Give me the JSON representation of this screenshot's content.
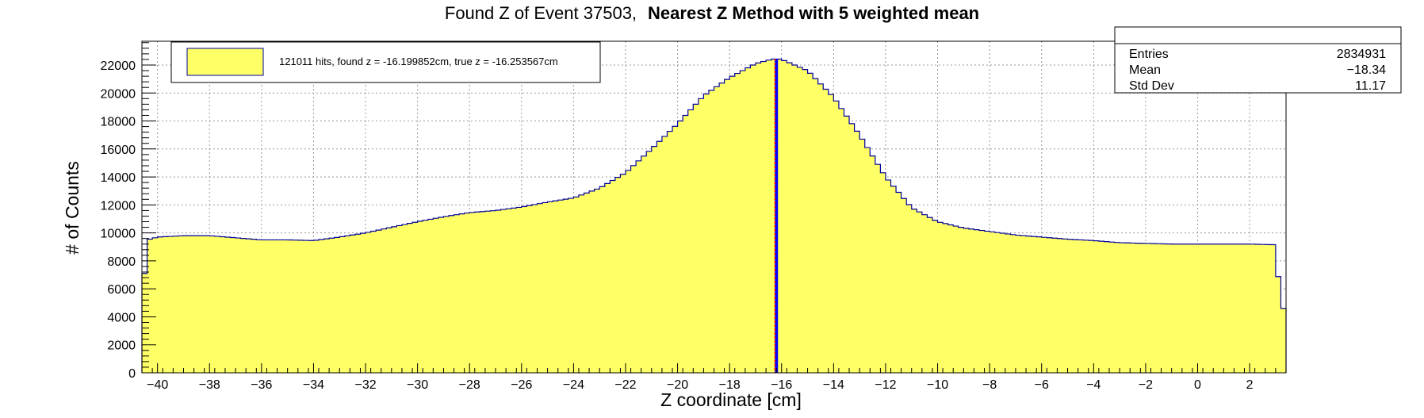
{
  "title": {
    "prefix": "Found Z of Event 37503,",
    "bold": "Nearest Z Method with 5 weighted mean"
  },
  "stats_box": {
    "rows": [
      {
        "label": "Entries",
        "value": "2834931"
      },
      {
        "label": "Mean",
        "value": "−18.34"
      },
      {
        "label": "Std Dev",
        "value": "11.17"
      }
    ]
  },
  "legend": {
    "text": "121011 hits, found z = -16.199852cm, true z = -16.253567cm",
    "swatch_color": "#ffff66"
  },
  "colors": {
    "fill": "#ffff66",
    "outline": "#000099",
    "found_line": "#0000ff",
    "true_line": "#ff0000"
  },
  "chart_data": {
    "type": "bar",
    "subtype": "histogram",
    "xlabel": "Z coordinate [cm]",
    "ylabel": "# of Counts",
    "xlim": [
      -40.6,
      3.4
    ],
    "ylim": [
      0,
      23700
    ],
    "bin_width": 0.2,
    "x_ticks": [
      -40,
      -38,
      -36,
      -34,
      -32,
      -30,
      -28,
      -26,
      -24,
      -22,
      -20,
      -18,
      -16,
      -14,
      -12,
      -10,
      -8,
      -6,
      -4,
      -2,
      0,
      2
    ],
    "x_tick_labels": [
      "−40",
      "−38",
      "−36",
      "−34",
      "−32",
      "−30",
      "−28",
      "−26",
      "−24",
      "−22",
      "−20",
      "−18",
      "−16",
      "−14",
      "−12",
      "−10",
      "−8",
      "−6",
      "−4",
      "−2",
      "0",
      "2"
    ],
    "y_ticks": [
      0,
      2000,
      4000,
      6000,
      8000,
      10000,
      12000,
      14000,
      16000,
      18000,
      20000,
      22000
    ],
    "y_tick_labels": [
      "0",
      "2000",
      "4000",
      "6000",
      "8000",
      "10000",
      "12000",
      "14000",
      "16000",
      "18000",
      "20000",
      "22000"
    ],
    "grid": true,
    "legend_position": "top-left",
    "profile": {
      "x": [
        -40.6,
        -40.4,
        -40.0,
        -39.0,
        -38.0,
        -37.0,
        -36.0,
        -35.0,
        -34.0,
        -33.0,
        -32.0,
        -31.0,
        -30.0,
        -29.0,
        -28.0,
        -27.0,
        -26.0,
        -25.0,
        -24.0,
        -23.0,
        -22.0,
        -21.0,
        -20.0,
        -19.0,
        -18.0,
        -17.0,
        -16.4,
        -16.2,
        -16.0,
        -15.0,
        -14.0,
        -13.0,
        -12.0,
        -11.0,
        -10.0,
        -9.0,
        -8.0,
        -7.0,
        -6.0,
        -5.0,
        -4.0,
        -3.0,
        -2.0,
        -1.0,
        0.0,
        1.0,
        2.0,
        3.0,
        3.2
      ],
      "y": [
        4700,
        9500,
        9700,
        9800,
        9800,
        9650,
        9500,
        9500,
        9450,
        9700,
        10000,
        10400,
        10800,
        11150,
        11450,
        11600,
        11850,
        12200,
        12500,
        13200,
        14300,
        16000,
        17800,
        19800,
        21100,
        22100,
        22400,
        22450,
        22400,
        21600,
        19700,
        17000,
        14000,
        11800,
        10800,
        10350,
        10100,
        9850,
        9700,
        9550,
        9450,
        9300,
        9250,
        9200,
        9200,
        9200,
        9200,
        9150,
        4600
      ]
    },
    "vertical_lines": [
      {
        "name": "found z",
        "x": -16.199852,
        "color": "#0000ff"
      },
      {
        "name": "true z",
        "x": -16.253567,
        "color": "#ff0000"
      }
    ]
  }
}
